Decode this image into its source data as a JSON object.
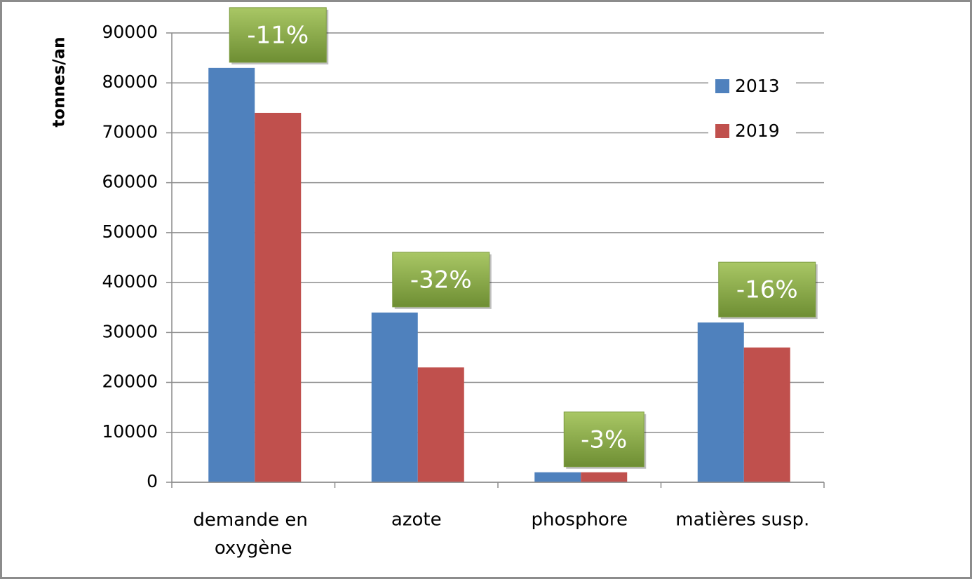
{
  "chart_data": {
    "type": "bar",
    "y_label": "tonnes/an",
    "categories": [
      "demande en oxygène",
      "azote",
      "phosphore",
      "matières susp."
    ],
    "series": [
      {
        "name": "2013",
        "color": "#4f81bd",
        "values": [
          83000,
          34000,
          2000,
          32000
        ]
      },
      {
        "name": "2019",
        "color": "#c0504d",
        "values": [
          74000,
          23000,
          2000,
          27000
        ]
      }
    ],
    "annotations": [
      "-11%",
      "-32%",
      "-3%",
      "-16%"
    ],
    "ylim": [
      0,
      90000
    ],
    "yticks": [
      0,
      10000,
      20000,
      30000,
      40000,
      50000,
      60000,
      70000,
      80000,
      90000
    ],
    "grid": true,
    "legend": "top-right"
  }
}
